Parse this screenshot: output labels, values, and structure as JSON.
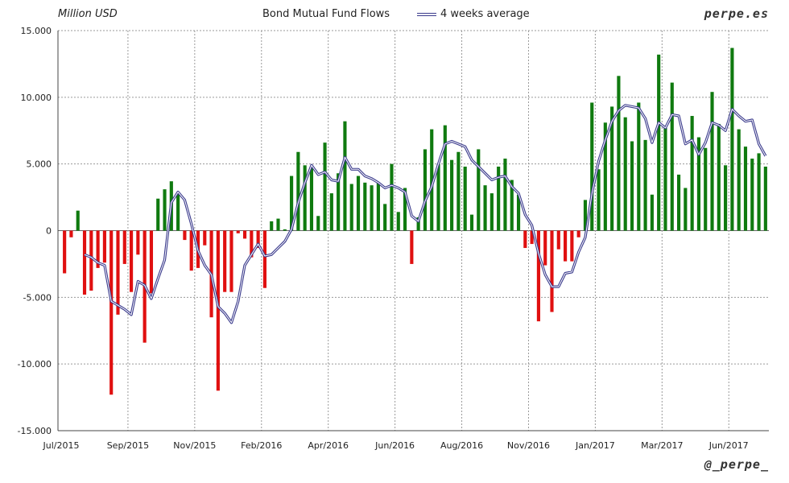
{
  "header": {
    "unit_label": "Million USD",
    "title": "Bond Mutual Fund Flows",
    "legend_label": "4 weeks average",
    "brand": "perpe.es"
  },
  "footer": {
    "handle": "@_perpe_"
  },
  "colors": {
    "positive": "#0f7a0f",
    "negative": "#e01010",
    "average_line": "#3a3a8c",
    "grid": "#9a9a9a"
  },
  "chart_data": {
    "type": "bar",
    "unit": "Million USD",
    "title": "Bond Mutual Fund Flows",
    "ylim": [
      -15000,
      15000
    ],
    "y_ticks": [
      15000,
      10000,
      5000,
      0,
      -5000,
      -10000,
      -15000
    ],
    "y_tick_labels": [
      "15.000",
      "10.000",
      "5.000",
      "0",
      "-5.000",
      "-10.000",
      "-15.000"
    ],
    "x_tick_labels": [
      "Jul/2015",
      "Sep/2015",
      "Nov/2015",
      "Feb/2016",
      "Apr/2016",
      "Jun/2016",
      "Aug/2016",
      "Nov/2016",
      "Jan/2017",
      "Mar/2017",
      "Jun/2017"
    ],
    "x_tick_week_index": [
      0,
      10,
      20,
      30,
      40,
      50,
      60,
      70,
      80,
      90,
      100
    ],
    "grid": true,
    "legend_position": "top",
    "series": [
      {
        "name": "Bond Mutual Fund Flows",
        "kind": "bar",
        "values": [
          -3200,
          -500,
          1500,
          -4800,
          -4500,
          -2800,
          -2400,
          -12300,
          -6300,
          -2500,
          -4600,
          -1800,
          -8400,
          -4700,
          2400,
          3100,
          3700,
          2800,
          -700,
          -3000,
          -2800,
          -1100,
          -6500,
          -12000,
          -4600,
          -4600,
          -200,
          -600,
          -2000,
          -1300,
          -4300,
          700,
          900,
          100,
          4100,
          5900,
          4900,
          4800,
          1100,
          6600,
          2800,
          4300,
          8200,
          3500,
          4100,
          3600,
          3400,
          3600,
          2000,
          5000,
          1400,
          3200,
          -2500,
          1000,
          6100,
          7600,
          5000,
          7900,
          5300,
          5900,
          4800,
          1200,
          6100,
          3400,
          2800,
          4800,
          5400,
          3800,
          2700,
          -1300,
          -1000,
          -6800,
          -2600,
          -6100,
          -1400,
          -2300,
          -2300,
          -500,
          2300,
          9600,
          4600,
          8100,
          9300,
          11600,
          8500,
          6700,
          9600,
          6800,
          2700,
          13200,
          7700,
          11100,
          4200,
          3200,
          8600,
          7000,
          6200,
          10400,
          8000,
          4900,
          13700,
          7600,
          6300,
          5400,
          5800,
          4800
        ]
      },
      {
        "name": "4 weeks average",
        "kind": "line",
        "values": [
          null,
          null,
          null,
          -1800,
          -2000,
          -2400,
          -2600,
          -5300,
          -5600,
          -5900,
          -6300,
          -3800,
          -4100,
          -5100,
          -3600,
          -2200,
          2100,
          2900,
          2300,
          500,
          -1500,
          -2600,
          -3300,
          -5700,
          -6200,
          -6900,
          -5300,
          -2600,
          -1800,
          -1000,
          -1900,
          -1800,
          -1300,
          -800,
          100,
          2100,
          3600,
          4900,
          4200,
          4400,
          3800,
          3700,
          5500,
          4600,
          4600,
          4100,
          3900,
          3600,
          3200,
          3400,
          3200,
          2900,
          1100,
          700,
          2200,
          3300,
          5000,
          6500,
          6700,
          6500,
          6300,
          5300,
          4800,
          4300,
          3800,
          4000,
          4100,
          3300,
          2800,
          1200,
          400,
          -1700,
          -3300,
          -4200,
          -4200,
          -3200,
          -3100,
          -1600,
          -500,
          2800,
          5200,
          6800,
          8200,
          9000,
          9400,
          9300,
          9200,
          8400,
          6600,
          8100,
          7700,
          8700,
          8600,
          6500,
          6800,
          5700,
          6600,
          8100,
          7900,
          7500,
          9100,
          8600,
          8200,
          8300,
          6500,
          5600
        ]
      }
    ]
  }
}
